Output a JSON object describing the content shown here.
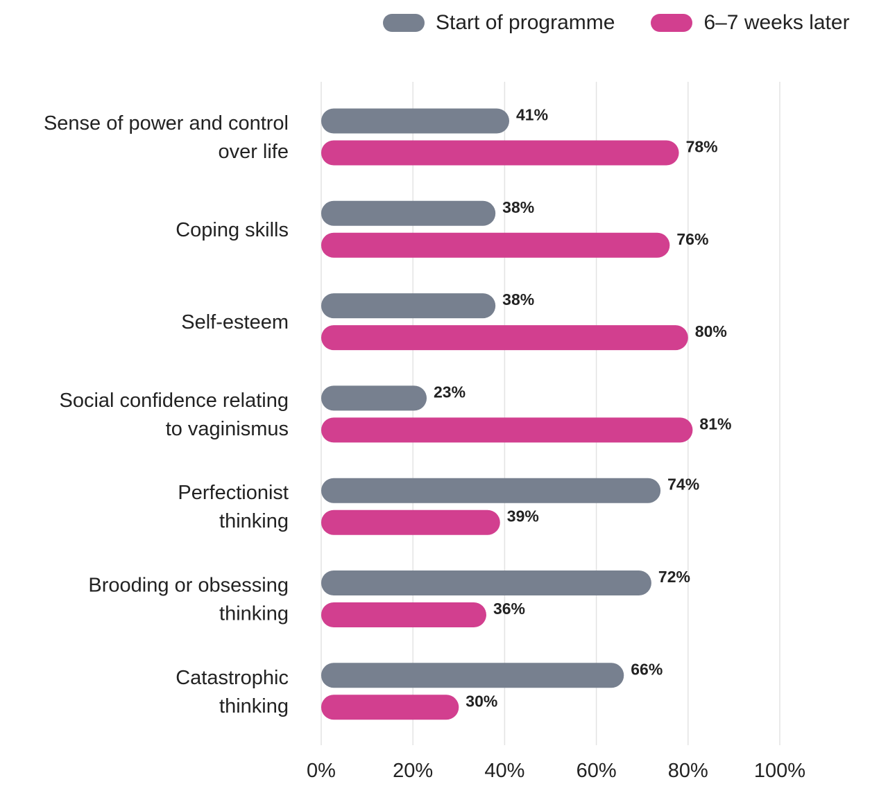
{
  "chart_data": {
    "type": "bar",
    "orientation": "horizontal",
    "categories": [
      [
        "Sense of power and control",
        "over life"
      ],
      [
        "Coping skills"
      ],
      [
        "Self-esteem"
      ],
      [
        "Social confidence relating",
        "to vaginismus"
      ],
      [
        "Perfectionist",
        "thinking"
      ],
      [
        "Brooding or obsessing",
        "thinking"
      ],
      [
        "Catastrophic",
        "thinking"
      ]
    ],
    "series": [
      {
        "name": "Start of programme",
        "color": "#77808f",
        "values": [
          41,
          38,
          38,
          23,
          74,
          72,
          66
        ]
      },
      {
        "name": "6–7 weeks later",
        "color": "#d23f8f",
        "values": [
          78,
          76,
          80,
          81,
          39,
          36,
          30
        ]
      }
    ],
    "value_suffix": "%",
    "xlim": [
      0,
      100
    ],
    "xticks": [
      0,
      20,
      40,
      60,
      80,
      100
    ],
    "xtick_labels": [
      "0%",
      "20%",
      "40%",
      "60%",
      "80%",
      "100%"
    ],
    "grid": "vertical",
    "legend_position": "top-right",
    "data_labels": true
  }
}
